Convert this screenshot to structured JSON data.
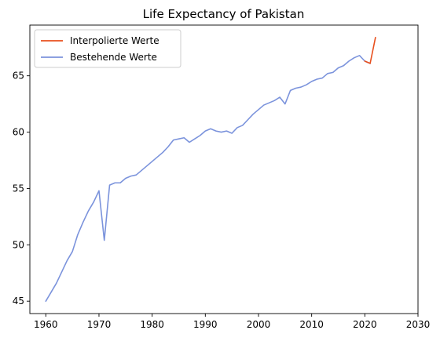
{
  "chart_data": {
    "type": "line",
    "title": "Life Expectancy of Pakistan",
    "xlabel": "",
    "ylabel": "",
    "xlim": [
      1957,
      2030
    ],
    "ylim": [
      43.9,
      69.5
    ],
    "xticks": [
      1960,
      1970,
      1980,
      1990,
      2000,
      2010,
      2020,
      2030
    ],
    "yticks": [
      45,
      50,
      55,
      60,
      65
    ],
    "grid": false,
    "legend_position": "top-left",
    "series": [
      {
        "name": "Interpolierte Werte",
        "color": "#e8501e",
        "x": [
          2020,
          2021,
          2022
        ],
        "y": [
          66.3,
          66.1,
          68.4
        ]
      },
      {
        "name": "Bestehende Werte",
        "color": "#7b93dc",
        "x": [
          1960,
          1961,
          1962,
          1963,
          1964,
          1965,
          1966,
          1967,
          1968,
          1969,
          1970,
          1971,
          1972,
          1973,
          1974,
          1975,
          1976,
          1977,
          1978,
          1979,
          1980,
          1981,
          1982,
          1983,
          1984,
          1985,
          1986,
          1987,
          1988,
          1989,
          1990,
          1991,
          1992,
          1993,
          1994,
          1995,
          1996,
          1997,
          1998,
          1999,
          2000,
          2001,
          2002,
          2003,
          2004,
          2005,
          2006,
          2007,
          2008,
          2009,
          2010,
          2011,
          2012,
          2013,
          2014,
          2015,
          2016,
          2017,
          2018,
          2019,
          2020,
          2021
        ],
        "y": [
          45.0,
          45.8,
          46.6,
          47.6,
          48.6,
          49.4,
          50.9,
          52.0,
          53.0,
          53.8,
          54.8,
          50.4,
          55.3,
          55.5,
          55.5,
          55.9,
          56.1,
          56.2,
          56.6,
          57.0,
          57.4,
          57.8,
          58.2,
          58.7,
          59.3,
          59.4,
          59.5,
          59.1,
          59.4,
          59.7,
          60.1,
          60.3,
          60.1,
          60.0,
          60.1,
          59.9,
          60.4,
          60.6,
          61.1,
          61.6,
          62.0,
          62.4,
          62.6,
          62.8,
          63.1,
          62.5,
          63.7,
          63.9,
          64.0,
          64.2,
          64.5,
          64.7,
          64.8,
          65.2,
          65.3,
          65.7,
          65.9,
          66.3,
          66.6,
          66.8,
          66.3,
          66.1
        ]
      }
    ]
  }
}
